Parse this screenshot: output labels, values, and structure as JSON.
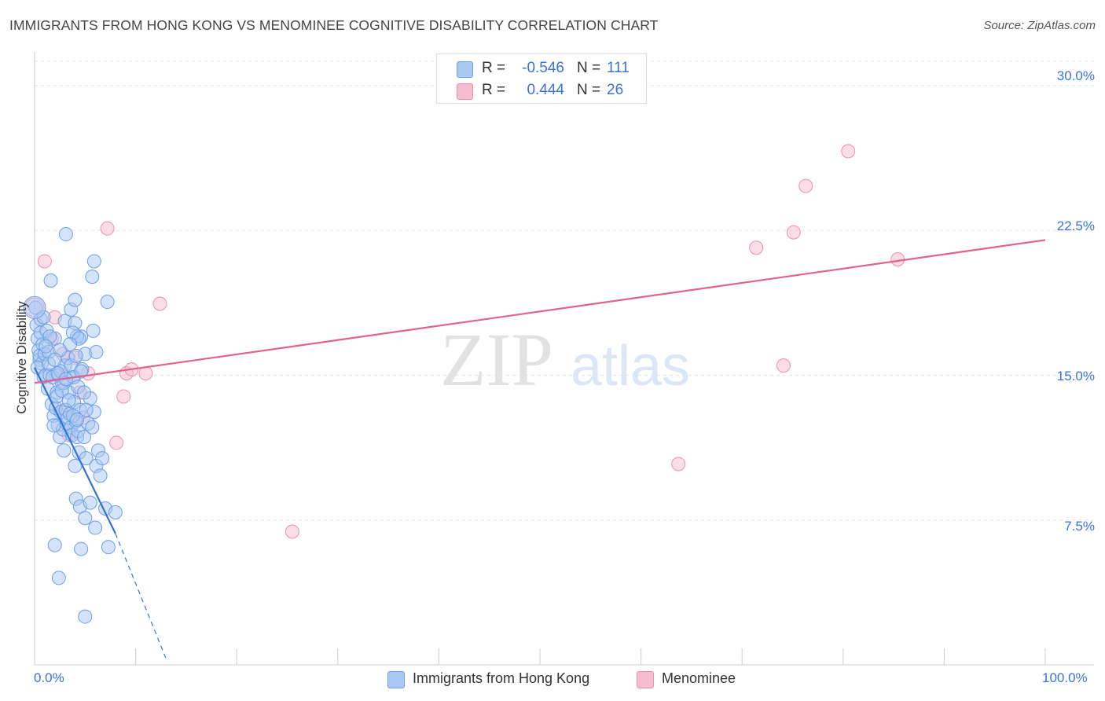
{
  "title": "IMMIGRANTS FROM HONG KONG VS MENOMINEE COGNITIVE DISABILITY CORRELATION CHART",
  "source": "Source: ZipAtlas.com",
  "watermark": {
    "zip": "ZIP",
    "atlas": "atlas"
  },
  "colors": {
    "blue_fill": "#a9c8f3",
    "blue_stroke": "#6d9fe3",
    "blue_line": "#2f74d6",
    "pink_fill": "#f6bcd0",
    "pink_stroke": "#ee8fb0",
    "pink_line": "#e0628d",
    "tick_text": "#3b72d9",
    "grid": "#e4e4e4"
  },
  "legend": {
    "r_label": "R =",
    "n_label": "N =",
    "rows": [
      {
        "series": "Immigrants from Hong Kong",
        "r": "-0.546",
        "n": "111"
      },
      {
        "series": "Menominee",
        "r": "0.444",
        "n": "26"
      }
    ]
  },
  "chart_data": {
    "type": "scatter",
    "title": "IMMIGRANTS FROM HONG KONG VS MENOMINEE COGNITIVE DISABILITY CORRELATION CHART",
    "xlabel": "",
    "ylabel": "Cognitive Disability",
    "xlim": [
      0,
      100
    ],
    "ylim": [
      0,
      31.5
    ],
    "x_tick_labels": [
      "0.0%",
      "100.0%"
    ],
    "y_ticks": [
      7.5,
      15.0,
      22.5,
      30.0
    ],
    "y_tick_labels": [
      "7.5%",
      "15.0%",
      "22.5%",
      "30.0%"
    ],
    "grid": true,
    "legend_position": "top-center",
    "series": [
      {
        "name": "Immigrants from Hong Kong",
        "color": "blue",
        "points": [
          [
            0.1,
            18.5
          ],
          [
            0.2,
            17.6
          ],
          [
            0.3,
            16.9
          ],
          [
            0.4,
            16.3
          ],
          [
            0.5,
            15.8
          ],
          [
            0.6,
            17.2
          ],
          [
            0.5,
            16.0
          ],
          [
            0.7,
            15.6
          ],
          [
            0.8,
            16.6
          ],
          [
            0.9,
            14.9
          ],
          [
            1.0,
            16.1
          ],
          [
            0.3,
            15.4
          ],
          [
            1.2,
            17.3
          ],
          [
            0.6,
            17.9
          ],
          [
            1.1,
            15.0
          ],
          [
            1.3,
            14.3
          ],
          [
            1.4,
            16.2
          ],
          [
            1.5,
            15.0
          ],
          [
            1.6,
            19.9
          ],
          [
            1.7,
            13.5
          ],
          [
            1.8,
            14.9
          ],
          [
            1.9,
            12.9
          ],
          [
            2.0,
            16.9
          ],
          [
            2.1,
            13.3
          ],
          [
            2.2,
            14.1
          ],
          [
            2.3,
            12.4
          ],
          [
            2.4,
            15.0
          ],
          [
            2.5,
            11.8
          ],
          [
            2.6,
            13.1
          ],
          [
            2.7,
            14.6
          ],
          [
            2.8,
            12.2
          ],
          [
            2.9,
            11.1
          ],
          [
            3.0,
            15.5
          ],
          [
            3.1,
            13.2
          ],
          [
            3.2,
            12.5
          ],
          [
            3.3,
            12.8
          ],
          [
            3.4,
            14.1
          ],
          [
            3.5,
            13.0
          ],
          [
            3.6,
            12.3
          ],
          [
            3.7,
            11.9
          ],
          [
            3.8,
            14.9
          ],
          [
            3.9,
            13.6
          ],
          [
            4.0,
            10.3
          ],
          [
            4.1,
            12.6
          ],
          [
            4.2,
            11.8
          ],
          [
            4.3,
            12.1
          ],
          [
            4.4,
            11.0
          ],
          [
            4.5,
            13.2
          ],
          [
            1.9,
            12.4
          ],
          [
            2.2,
            13.9
          ],
          [
            2.6,
            15.2
          ],
          [
            2.9,
            14.6
          ],
          [
            3.3,
            15.9
          ],
          [
            3.6,
            15.5
          ],
          [
            3.9,
            14.9
          ],
          [
            4.3,
            14.4
          ],
          [
            4.7,
            15.3
          ],
          [
            4.9,
            11.8
          ],
          [
            5.1,
            10.7
          ],
          [
            5.3,
            12.5
          ],
          [
            5.5,
            13.8
          ],
          [
            5.7,
            12.3
          ],
          [
            5.9,
            13.1
          ],
          [
            6.1,
            10.3
          ],
          [
            6.3,
            11.1
          ],
          [
            6.5,
            9.8
          ],
          [
            6.7,
            10.7
          ],
          [
            3.0,
            17.8
          ],
          [
            3.6,
            18.4
          ],
          [
            4.0,
            17.7
          ],
          [
            4.6,
            17.0
          ],
          [
            5.0,
            16.1
          ],
          [
            3.1,
            22.3
          ],
          [
            4.2,
            17.0
          ],
          [
            4.6,
            15.2
          ],
          [
            4.9,
            14.1
          ],
          [
            5.1,
            13.2
          ],
          [
            4.1,
            8.6
          ],
          [
            4.5,
            8.2
          ],
          [
            5.0,
            7.6
          ],
          [
            5.5,
            8.4
          ],
          [
            6.0,
            7.1
          ],
          [
            7.0,
            8.1
          ],
          [
            8.0,
            7.9
          ],
          [
            7.2,
            18.8
          ],
          [
            5.7,
            20.1
          ],
          [
            5.9,
            20.9
          ],
          [
            4.0,
            18.9
          ],
          [
            4.1,
            16.0
          ],
          [
            2.0,
            6.2
          ],
          [
            2.4,
            4.5
          ],
          [
            4.6,
            6.0
          ],
          [
            7.3,
            6.1
          ],
          [
            5.0,
            2.5
          ],
          [
            3.8,
            17.2
          ],
          [
            6.1,
            16.2
          ],
          [
            5.8,
            17.3
          ],
          [
            4.4,
            16.9
          ],
          [
            3.5,
            16.6
          ],
          [
            2.5,
            16.3
          ],
          [
            1.5,
            17.0
          ],
          [
            0.9,
            18.0
          ],
          [
            1.1,
            16.5
          ],
          [
            1.4,
            15.6
          ],
          [
            2.0,
            15.8
          ],
          [
            2.3,
            15.1
          ],
          [
            2.7,
            14.2
          ],
          [
            3.1,
            14.8
          ],
          [
            3.4,
            13.7
          ],
          [
            3.8,
            12.9
          ],
          [
            4.2,
            12.7
          ]
        ],
        "trend": {
          "x0": 0,
          "y0": 15.4,
          "x1": 8.0,
          "y1": 6.8,
          "dash_to_x": 13.1,
          "dash_to_y": 0.2
        }
      },
      {
        "name": "Menominee",
        "color": "pink",
        "points": [
          [
            1.0,
            20.9
          ],
          [
            1.7,
            16.9
          ],
          [
            2.0,
            18.0
          ],
          [
            2.3,
            15.0
          ],
          [
            2.8,
            16.1
          ],
          [
            3.0,
            13.2
          ],
          [
            3.4,
            11.9
          ],
          [
            4.0,
            15.9
          ],
          [
            4.5,
            14.1
          ],
          [
            4.8,
            12.8
          ],
          [
            5.3,
            15.1
          ],
          [
            7.2,
            22.6
          ],
          [
            8.1,
            11.5
          ],
          [
            8.8,
            13.9
          ],
          [
            9.1,
            15.1
          ],
          [
            9.6,
            15.3
          ],
          [
            11.0,
            15.1
          ],
          [
            12.4,
            18.7
          ],
          [
            25.5,
            6.9
          ],
          [
            63.7,
            10.4
          ],
          [
            71.4,
            21.6
          ],
          [
            74.1,
            15.5
          ],
          [
            75.1,
            22.4
          ],
          [
            76.3,
            24.8
          ],
          [
            80.5,
            26.6
          ],
          [
            85.4,
            21.0
          ]
        ],
        "trend": {
          "x0": 0,
          "y0": 14.6,
          "x1": 100,
          "y1": 22.0
        }
      }
    ]
  }
}
